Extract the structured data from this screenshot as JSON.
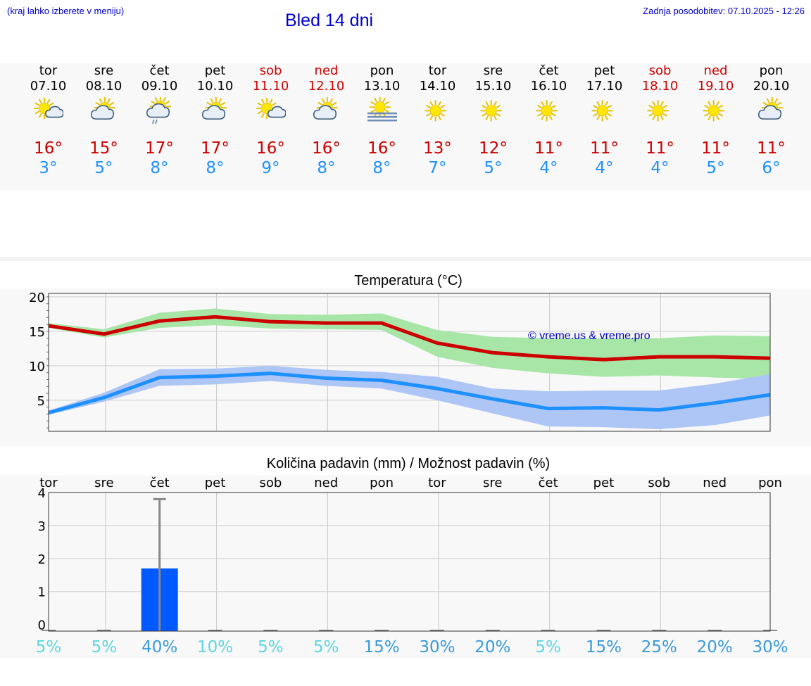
{
  "header": {
    "hint": "(kraj lahko izberete v meniju)",
    "title": "Bled 14 dni",
    "updated": "Zadnja posodobitev: 07.10.2025 - 12:26"
  },
  "colors": {
    "max": "#cc0000",
    "min": "#1e90ff",
    "max_band": "#a8e6a8",
    "min_band": "#aec6f5",
    "bar": "#005aff",
    "prob_low": "#5dd5e0",
    "prob_high": "#3a9ad9",
    "weekend": "#cc0000",
    "title": "#0000cc"
  },
  "days": [
    {
      "name": "tor",
      "date": "07.10",
      "weekend": false,
      "icon": "sun-cloud-icon",
      "tmax": "16°",
      "tmin": "3°"
    },
    {
      "name": "sre",
      "date": "08.10",
      "weekend": false,
      "icon": "cloud-sun-icon",
      "tmax": "15°",
      "tmin": "5°"
    },
    {
      "name": "čet",
      "date": "09.10",
      "weekend": false,
      "icon": "cloud-sun-rain-icon",
      "tmax": "17°",
      "tmin": "8°"
    },
    {
      "name": "pet",
      "date": "10.10",
      "weekend": false,
      "icon": "cloud-sun-icon",
      "tmax": "17°",
      "tmin": "8°"
    },
    {
      "name": "sob",
      "date": "11.10",
      "weekend": true,
      "icon": "sun-cloud-icon",
      "tmax": "16°",
      "tmin": "9°"
    },
    {
      "name": "ned",
      "date": "12.10",
      "weekend": true,
      "icon": "cloud-sun-icon",
      "tmax": "16°",
      "tmin": "8°"
    },
    {
      "name": "pon",
      "date": "13.10",
      "weekend": false,
      "icon": "sun-fog-icon",
      "tmax": "16°",
      "tmin": "8°"
    },
    {
      "name": "tor",
      "date": "14.10",
      "weekend": false,
      "icon": "sun-icon",
      "tmax": "13°",
      "tmin": "7°"
    },
    {
      "name": "sre",
      "date": "15.10",
      "weekend": false,
      "icon": "sun-icon",
      "tmax": "12°",
      "tmin": "5°"
    },
    {
      "name": "čet",
      "date": "16.10",
      "weekend": false,
      "icon": "sun-icon",
      "tmax": "11°",
      "tmin": "4°"
    },
    {
      "name": "pet",
      "date": "17.10",
      "weekend": false,
      "icon": "sun-icon",
      "tmax": "11°",
      "tmin": "4°"
    },
    {
      "name": "sob",
      "date": "18.10",
      "weekend": true,
      "icon": "sun-icon",
      "tmax": "11°",
      "tmin": "4°"
    },
    {
      "name": "ned",
      "date": "19.10",
      "weekend": true,
      "icon": "sun-icon",
      "tmax": "11°",
      "tmin": "5°"
    },
    {
      "name": "pon",
      "date": "20.10",
      "weekend": false,
      "icon": "cloud-sun-icon",
      "tmax": "11°",
      "tmin": "6°"
    }
  ],
  "chart_data": [
    {
      "type": "line",
      "title": "Temperatura (°C)",
      "annotation": "© vreme.us & vreme.pro",
      "x": [
        0,
        1,
        2,
        3,
        4,
        5,
        6,
        7,
        8,
        9,
        10,
        11,
        12,
        13
      ],
      "ylim": [
        0.5,
        20.5
      ],
      "yticks": [
        5,
        10,
        15,
        20
      ],
      "grid": true,
      "series": [
        {
          "values": [
            15.8,
            14.6,
            16.5,
            17.1,
            16.4,
            16.2,
            16.2,
            13.3,
            11.9,
            11.3,
            10.9,
            11.3,
            11.3,
            11.1
          ],
          "band_low": [
            15.5,
            14.1,
            15.5,
            15.9,
            15.4,
            15.3,
            15.2,
            11.3,
            9.7,
            8.9,
            8.4,
            8.6,
            8.3,
            8.1
          ],
          "band_high": [
            16.2,
            15.3,
            17.7,
            18.3,
            17.5,
            17.4,
            17.6,
            15.2,
            14.2,
            14.0,
            14.0,
            14.0,
            14.4,
            14.3
          ]
        },
        {
          "values": [
            3.2,
            5.4,
            8.3,
            8.5,
            8.9,
            8.2,
            7.9,
            6.7,
            5.2,
            3.8,
            3.9,
            3.6,
            4.6,
            5.8
          ],
          "band_low": [
            2.9,
            4.8,
            7.1,
            7.3,
            7.8,
            7.1,
            6.7,
            5.0,
            3.1,
            1.2,
            1.1,
            0.8,
            1.4,
            2.8
          ],
          "band_high": [
            3.5,
            6.1,
            9.5,
            9.6,
            10.0,
            9.4,
            9.1,
            8.4,
            6.7,
            6.3,
            6.4,
            6.4,
            7.4,
            8.8
          ]
        }
      ]
    },
    {
      "type": "bar",
      "title": "Količina padavin (mm) / Možnost padavin (%)",
      "categories": [
        "tor",
        "sre",
        "čet",
        "pet",
        "sob",
        "ned",
        "pon",
        "tor",
        "sre",
        "čet",
        "pet",
        "sob",
        "ned",
        "pon"
      ],
      "values": [
        0,
        0,
        1.7,
        0,
        0,
        0,
        0,
        0,
        0,
        0,
        0,
        0,
        0,
        0
      ],
      "error_high": [
        0,
        0,
        3.8,
        0,
        0,
        0,
        0,
        0,
        0,
        0,
        0,
        0,
        0,
        0
      ],
      "ylim": [
        -0.2,
        4
      ],
      "yticks": [
        0,
        1,
        2,
        3,
        4
      ],
      "grid": true,
      "probability": [
        "5%",
        "5%",
        "40%",
        "10%",
        "5%",
        "5%",
        "15%",
        "30%",
        "20%",
        "5%",
        "15%",
        "25%",
        "20%",
        "30%"
      ],
      "probability_values": [
        5,
        5,
        40,
        10,
        5,
        5,
        15,
        30,
        20,
        5,
        15,
        25,
        20,
        30
      ]
    }
  ]
}
